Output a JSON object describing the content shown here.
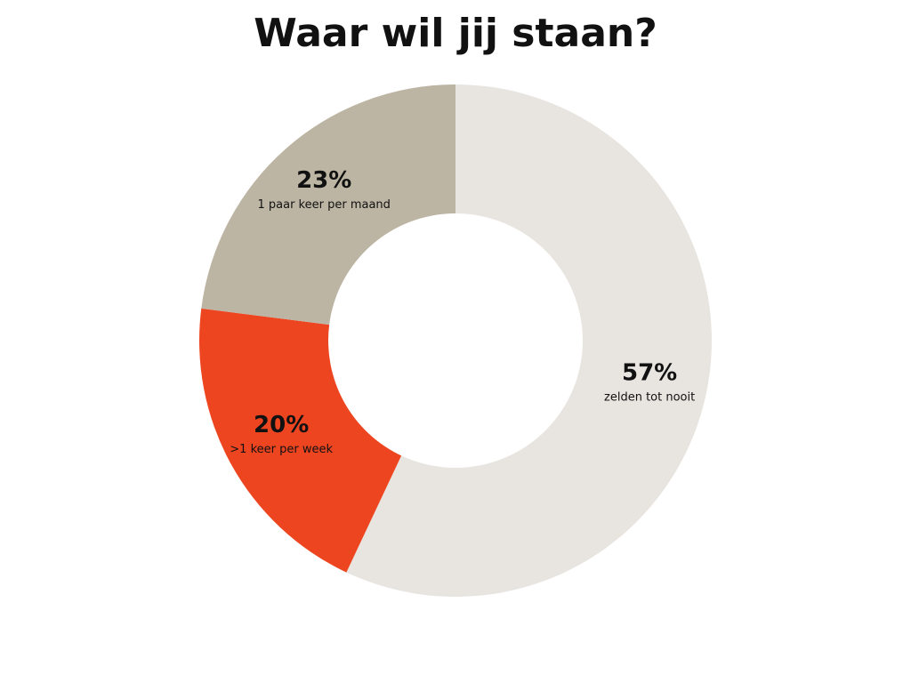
{
  "chart_data": {
    "type": "pie",
    "title": "Waar wil jij staan?",
    "categories": [
      "zelden tot nooit",
      ">1 keer per week",
      "1 paar keer per maand"
    ],
    "values": [
      57,
      20,
      23
    ],
    "value_labels": [
      "57%",
      "20%",
      "23%"
    ],
    "colors": [
      "#e8e5e0",
      "#ee4521",
      "#bdb5a3"
    ],
    "donut": true
  }
}
